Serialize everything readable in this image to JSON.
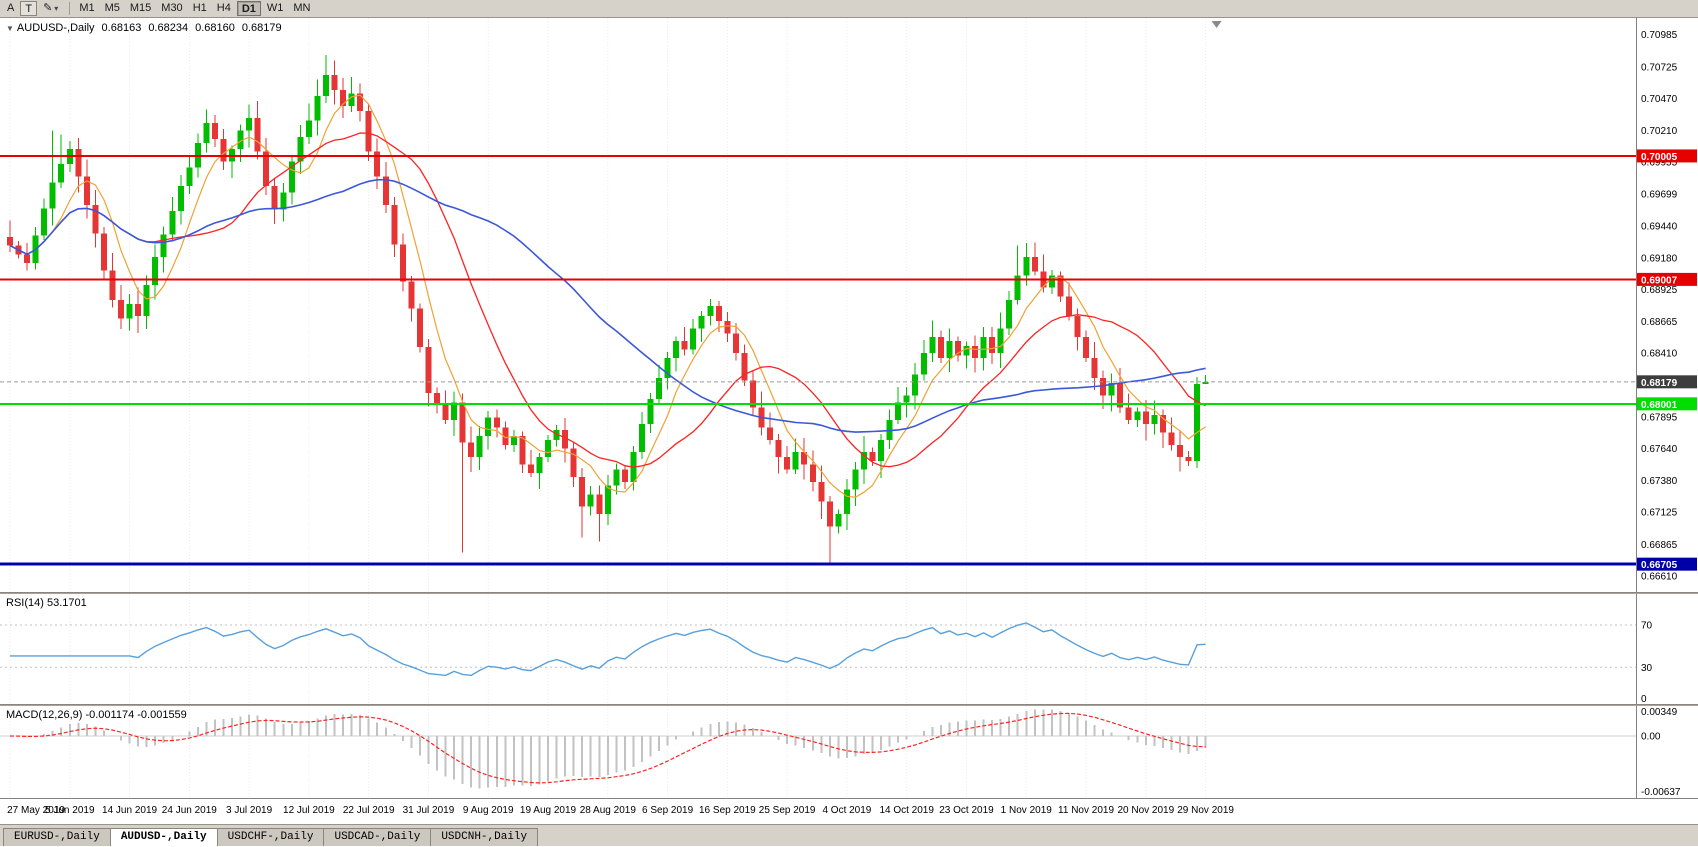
{
  "toolbar": {
    "button_a": "A",
    "button_t": "T",
    "periods": [
      "M1",
      "M5",
      "M15",
      "M30",
      "H1",
      "H4",
      "D1",
      "W1",
      "MN"
    ],
    "active_period": "D1"
  },
  "header": {
    "symbol_label": "AUDUSD-,Daily",
    "open": "0.68163",
    "high": "0.68234",
    "low": "0.68160",
    "close": "0.68179"
  },
  "price_axis_labels": [
    "0.70985",
    "0.70725",
    "0.70470",
    "0.70210",
    "0.69955",
    "0.69699",
    "0.69440",
    "0.69180",
    "0.68925",
    "0.68665",
    "0.68410",
    "0.67895",
    "0.67640",
    "0.67380",
    "0.67125",
    "0.66865",
    "0.66610"
  ],
  "colors": {
    "candle_up": "#00bd00",
    "candle_down": "#e53535",
    "ma_fast": "#efa232",
    "ma_mid": "#ff2222",
    "ma_slow": "#3b58d8",
    "rsi": "#58a0dc",
    "macd_hist": "#c2c2c2",
    "macd_signal": "#ff2222",
    "badge_current": "#3d3d3d"
  },
  "chart_data": {
    "type": "candlestick",
    "symbol": "AUDUSD-",
    "timeframe": "Daily",
    "price_range": {
      "max": 0.7112,
      "min": 0.6648
    },
    "current_price": 0.68179,
    "closes": [
      0.6928,
      0.6921,
      0.6914,
      0.6936,
      0.6958,
      0.6979,
      0.6994,
      0.7006,
      0.6984,
      0.6961,
      0.6938,
      0.6908,
      0.6884,
      0.6869,
      0.6881,
      0.6871,
      0.6896,
      0.6919,
      0.6937,
      0.6956,
      0.6976,
      0.6991,
      0.7011,
      0.7027,
      0.7014,
      0.6996,
      0.7006,
      0.7021,
      0.7031,
      0.7004,
      0.6976,
      0.6957,
      0.6971,
      0.6996,
      0.7016,
      0.7029,
      0.7049,
      0.7066,
      0.7054,
      0.7041,
      0.7051,
      0.7037,
      0.7004,
      0.6984,
      0.6961,
      0.6929,
      0.6899,
      0.6877,
      0.6846,
      0.6809,
      0.6799,
      0.6787,
      0.6801,
      0.6769,
      0.6757,
      0.6774,
      0.6789,
      0.6781,
      0.6767,
      0.6774,
      0.6751,
      0.6744,
      0.6757,
      0.6771,
      0.6779,
      0.6764,
      0.6741,
      0.6717,
      0.6727,
      0.6711,
      0.6734,
      0.6747,
      0.6737,
      0.6761,
      0.6784,
      0.6804,
      0.6821,
      0.6837,
      0.6851,
      0.6844,
      0.6861,
      0.6871,
      0.6879,
      0.6867,
      0.6857,
      0.6841,
      0.6819,
      0.6797,
      0.6781,
      0.6771,
      0.6757,
      0.6747,
      0.6761,
      0.6751,
      0.6737,
      0.6721,
      0.6701,
      0.6711,
      0.6731,
      0.6747,
      0.6761,
      0.6754,
      0.6771,
      0.6787,
      0.6801,
      0.6807,
      0.6824,
      0.6841,
      0.6854,
      0.6837,
      0.6851,
      0.6839,
      0.6847,
      0.6837,
      0.6854,
      0.6841,
      0.6861,
      0.6884,
      0.6904,
      0.6919,
      0.6907,
      0.6894,
      0.6904,
      0.6887,
      0.6871,
      0.6854,
      0.6837,
      0.6821,
      0.6807,
      0.6817,
      0.6797,
      0.6787,
      0.6794,
      0.6784,
      0.6791,
      0.6777,
      0.6767,
      0.6757,
      0.6754,
      0.6816,
      0.68179
    ],
    "last_ohlc": [
      0.68163,
      0.68234,
      0.6816,
      0.68179
    ],
    "wick_overrides": {
      "5": {
        "high": 0.7021
      },
      "6": {
        "high": 0.7018
      },
      "23": {
        "high": 0.7038
      },
      "28": {
        "high": 0.7042
      },
      "37": {
        "high": 0.7082
      },
      "53": {
        "low": 0.668
      },
      "67": {
        "low": 0.6692
      },
      "69": {
        "low": 0.6689
      },
      "96": {
        "low": 0.66705
      },
      "118": {
        "high": 0.6928
      },
      "119": {
        "high": 0.693
      },
      "139": {
        "high": 0.6822
      }
    },
    "moving_averages": [
      {
        "period": 6,
        "color_key": "ma_fast"
      },
      {
        "period": 16,
        "color_key": "ma_mid"
      },
      {
        "period": 40,
        "color_key": "ma_slow"
      }
    ],
    "hlines": [
      {
        "price": 0.70005,
        "label": "0.70005",
        "color": "#e60000",
        "width": 2
      },
      {
        "price": 0.69007,
        "label": "0.69007",
        "color": "#e60000",
        "width": 2
      },
      {
        "price": 0.68001,
        "label": "0.68001",
        "color": "#00dd00",
        "width": 2
      },
      {
        "price": 0.66705,
        "label": "0.66705",
        "color": "#0000a8",
        "width": 3
      }
    ]
  },
  "rsi_panel": {
    "label": "RSI(14) 53.1701",
    "period": 14,
    "levels": [
      {
        "value": 70,
        "label": "70"
      },
      {
        "value": 30,
        "label": "30"
      },
      {
        "value": 0,
        "label": "0"
      }
    ]
  },
  "macd_panel": {
    "label": "MACD(12,26,9) -0.001174 -0.001559",
    "axis": [
      {
        "value": 0.00349,
        "label": "0.00349"
      },
      {
        "value": 0,
        "label": "0.00"
      },
      {
        "value": -0.00637,
        "label": "-0.00637"
      }
    ]
  },
  "date_axis": [
    "27 May 2019",
    "5 Jun 2019",
    "14 Jun 2019",
    "24 Jun 2019",
    "3 Jul 2019",
    "12 Jul 2019",
    "22 Jul 2019",
    "31 Jul 2019",
    "9 Aug 2019",
    "19 Aug 2019",
    "28 Aug 2019",
    "6 Sep 2019",
    "16 Sep 2019",
    "25 Sep 2019",
    "4 Oct 2019",
    "14 Oct 2019",
    "23 Oct 2019",
    "1 Nov 2019",
    "11 Nov 2019",
    "20 Nov 2019",
    "29 Nov 2019"
  ],
  "tabs": [
    "EURUSD-,Daily",
    "AUDUSD-,Daily",
    "USDCHF-,Daily",
    "USDCAD-,Daily",
    "USDCNH-,Daily"
  ],
  "active_tab": "AUDUSD-,Daily"
}
